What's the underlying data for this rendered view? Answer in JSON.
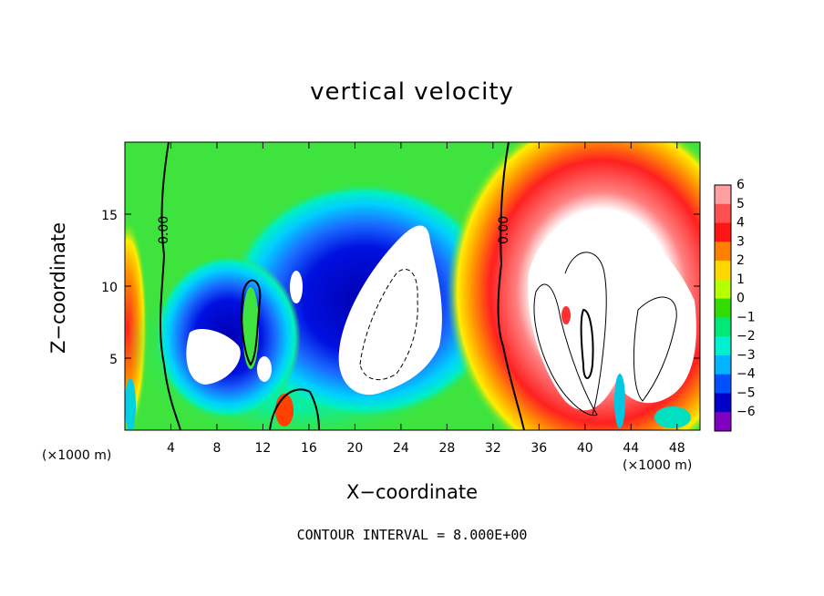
{
  "chart_data": {
    "type": "heatmap",
    "title": "vertical velocity",
    "xlabel": "X−coordinate",
    "ylabel": "Z−coordinate",
    "x_unit": "(×1000 m)",
    "footer": "CONTOUR INTERVAL = 8.000E+00",
    "xlim": [
      0,
      50
    ],
    "ylim": [
      0,
      20
    ],
    "x_ticks": [
      4,
      8,
      12,
      16,
      20,
      24,
      28,
      32,
      36,
      40,
      44,
      48
    ],
    "x_tick_labels": [
      "4",
      "8",
      "12",
      "16",
      "20",
      "24",
      "28",
      "32",
      "36",
      "40",
      "44",
      "48"
    ],
    "y_ticks": [
      5,
      10,
      15
    ],
    "y_tick_labels": [
      "5",
      "10",
      "15"
    ],
    "colorbar": {
      "levels": [
        6,
        5,
        4,
        3,
        2,
        1,
        0,
        -1,
        -2,
        -3,
        -4,
        -5,
        -6
      ],
      "labels": [
        "6",
        "5",
        "4",
        "3",
        "2",
        "1",
        "0",
        "−1",
        "−2",
        "−3",
        "−4",
        "−5",
        "−6"
      ],
      "colors": [
        "#ffa0a0",
        "#ff5050",
        "#ff1414",
        "#ff8000",
        "#ffd700",
        "#b4ff00",
        "#32dc00",
        "#00e878",
        "#00f0d0",
        "#00b4ff",
        "#0050ff",
        "#0000c8",
        "#8000c0"
      ]
    },
    "contour_labels": [
      "0.00",
      "0.00"
    ],
    "background_color": "#3ee33e",
    "saturated_color": "#ffffff",
    "features": [
      {
        "name": "updraft-right-envelope",
        "x": 41,
        "z": 8,
        "value": 5,
        "rx": 9,
        "rz": 10
      },
      {
        "name": "updraft-right-core",
        "x": 40.5,
        "z": 9,
        "value": 8,
        "rx": 6,
        "rz": 7
      },
      {
        "name": "downdraft-center-envelope",
        "x": 22,
        "z": 9,
        "value": -5,
        "rx": 11,
        "rz": 7
      },
      {
        "name": "downdraft-center-core",
        "x": 23,
        "z": 9,
        "value": -8,
        "rx": 4,
        "rz": 6
      },
      {
        "name": "downdraft-left-core",
        "x": 8,
        "z": 5.5,
        "value": -8,
        "rx": 2.2,
        "rz": 2
      }
    ]
  }
}
